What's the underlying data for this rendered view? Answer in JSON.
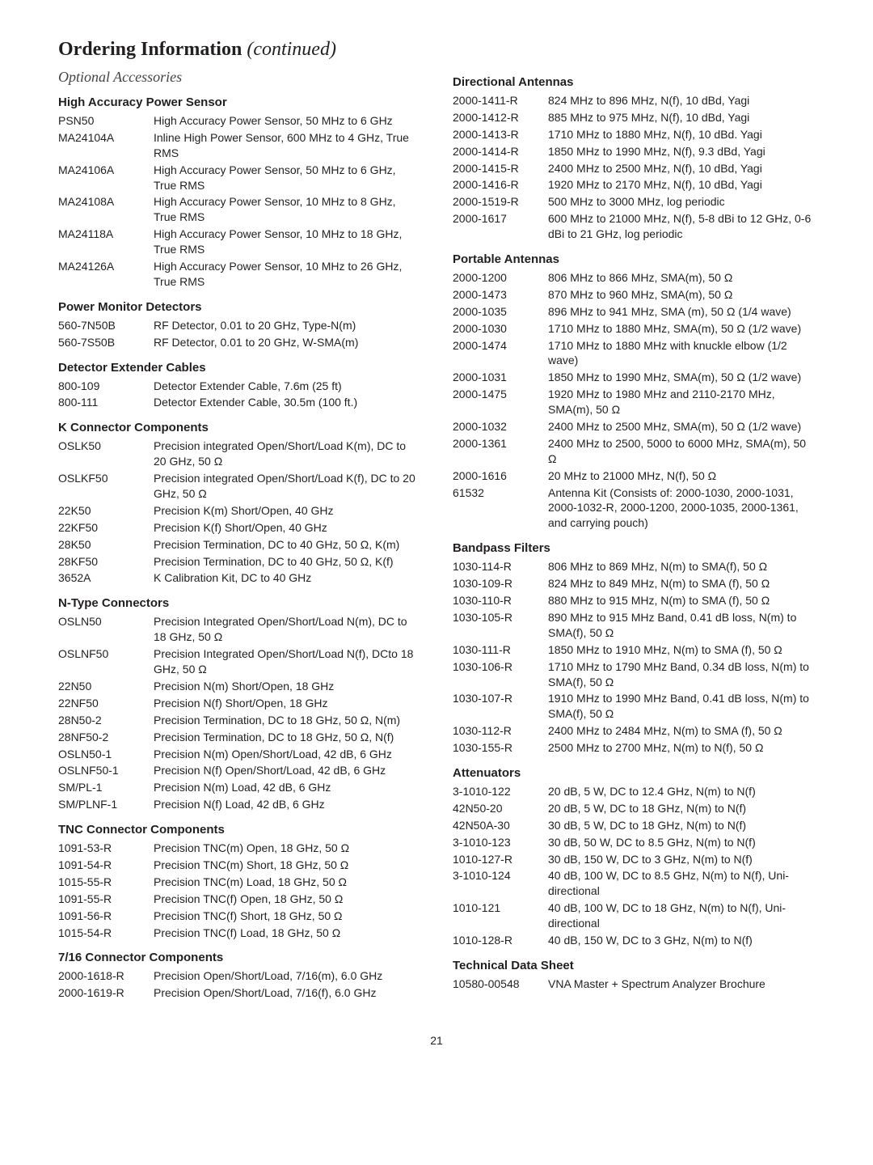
{
  "title_main": "Ordering Information",
  "title_continued": " (continued)",
  "subtitle": "Optional Accessories",
  "page_number": "21",
  "left_sections": [
    {
      "header": "High Accuracy Power Sensor",
      "items": [
        {
          "part": "PSN50",
          "desc": "High Accuracy Power Sensor, 50 MHz to 6 GHz"
        },
        {
          "part": "MA24104A",
          "desc": "Inline High Power Sensor, 600 MHz to 4 GHz, True RMS"
        },
        {
          "part": "MA24106A",
          "desc": "High Accuracy Power Sensor, 50 MHz to 6 GHz, True RMS"
        },
        {
          "part": "MA24108A",
          "desc": "High Accuracy Power Sensor, 10 MHz to 8 GHz, True RMS"
        },
        {
          "part": "MA24118A",
          "desc": "High Accuracy Power Sensor, 10 MHz to 18 GHz, True RMS"
        },
        {
          "part": "MA24126A",
          "desc": "High Accuracy Power Sensor, 10 MHz to 26 GHz, True RMS"
        }
      ]
    },
    {
      "header": "Power Monitor Detectors",
      "items": [
        {
          "part": "560-7N50B",
          "desc": "RF Detector, 0.01 to 20 GHz, Type-N(m)"
        },
        {
          "part": "560-7S50B",
          "desc": "RF Detector, 0.01 to 20 GHz, W-SMA(m)"
        }
      ]
    },
    {
      "header": "Detector Extender Cables",
      "items": [
        {
          "part": "800-109",
          "desc": "Detector Extender Cable, 7.6m (25 ft)"
        },
        {
          "part": "800-111",
          "desc": "Detector Extender Cable, 30.5m (100 ft.)"
        }
      ]
    },
    {
      "header": "K Connector Components",
      "items": [
        {
          "part": "OSLK50",
          "desc": "Precision integrated Open/Short/Load K(m), DC to 20 GHz, 50 Ω"
        },
        {
          "part": "OSLKF50",
          "desc": "Precision integrated Open/Short/Load K(f), DC to 20 GHz, 50 Ω"
        },
        {
          "part": "22K50",
          "desc": "Precision K(m) Short/Open, 40 GHz"
        },
        {
          "part": "22KF50",
          "desc": "Precision K(f) Short/Open, 40 GHz"
        },
        {
          "part": "28K50",
          "desc": "Precision Termination, DC to 40 GHz, 50 Ω, K(m)"
        },
        {
          "part": "28KF50",
          "desc": "Precision Termination, DC to 40 GHz, 50 Ω, K(f)"
        },
        {
          "part": "3652A",
          "desc": "K Calibration Kit, DC to 40 GHz"
        }
      ]
    },
    {
      "header": "N-Type Connectors",
      "items": [
        {
          "part": "OSLN50",
          "desc": "Precision Integrated Open/Short/Load N(m), DC to 18 GHz, 50 Ω"
        },
        {
          "part": "OSLNF50",
          "desc": "Precision Integrated Open/Short/Load N(f), DCto 18 GHz, 50 Ω"
        },
        {
          "part": "22N50",
          "desc": "Precision N(m) Short/Open, 18 GHz"
        },
        {
          "part": "22NF50",
          "desc": "Precision N(f) Short/Open, 18 GHz"
        },
        {
          "part": "28N50-2",
          "desc": "Precision Termination, DC to 18 GHz, 50 Ω, N(m)"
        },
        {
          "part": "28NF50-2",
          "desc": "Precision Termination, DC to 18 GHz, 50 Ω, N(f)"
        },
        {
          "part": "OSLN50-1",
          "desc": "Precision N(m) Open/Short/Load, 42 dB, 6 GHz"
        },
        {
          "part": "OSLNF50-1",
          "desc": "Precision N(f) Open/Short/Load, 42 dB, 6 GHz"
        },
        {
          "part": "SM/PL-1",
          "desc": "Precision N(m) Load, 42 dB, 6 GHz"
        },
        {
          "part": "SM/PLNF-1",
          "desc": "Precision N(f) Load, 42 dB, 6 GHz"
        }
      ]
    },
    {
      "header": "TNC Connector Components",
      "items": [
        {
          "part": "1091-53-R",
          "desc": "Precision TNC(m) Open, 18 GHz, 50 Ω"
        },
        {
          "part": "1091-54-R",
          "desc": "Precision TNC(m) Short, 18 GHz, 50 Ω"
        },
        {
          "part": "1015-55-R",
          "desc": "Precision TNC(m) Load, 18 GHz, 50 Ω"
        },
        {
          "part": "1091-55-R",
          "desc": "Precision TNC(f) Open, 18 GHz, 50 Ω"
        },
        {
          "part": "1091-56-R",
          "desc": "Precision TNC(f) Short, 18 GHz, 50 Ω"
        },
        {
          "part": "1015-54-R",
          "desc": "Precision TNC(f) Load, 18 GHz, 50 Ω"
        }
      ]
    },
    {
      "header": "7/16 Connector Components",
      "items": [
        {
          "part": "2000-1618-R",
          "desc": "Precision Open/Short/Load, 7/16(m), 6.0 GHz"
        },
        {
          "part": "2000-1619-R",
          "desc": "Precision Open/Short/Load, 7/16(f), 6.0 GHz"
        }
      ]
    }
  ],
  "right_sections": [
    {
      "header": "Directional Antennas",
      "items": [
        {
          "part": "2000-1411-R",
          "desc": "824 MHz to 896 MHz, N(f), 10 dBd, Yagi"
        },
        {
          "part": "2000-1412-R",
          "desc": "885 MHz to 975 MHz, N(f), 10 dBd, Yagi"
        },
        {
          "part": "2000-1413-R",
          "desc": "1710 MHz to 1880 MHz, N(f), 10 dBd. Yagi"
        },
        {
          "part": "2000-1414-R",
          "desc": "1850 MHz to 1990 MHz, N(f), 9.3 dBd, Yagi"
        },
        {
          "part": "2000-1415-R",
          "desc": "2400 MHz to 2500 MHz, N(f), 10 dBd, Yagi"
        },
        {
          "part": "2000-1416-R",
          "desc": "1920 MHz to 2170 MHz, N(f), 10 dBd, Yagi"
        },
        {
          "part": "2000-1519-R",
          "desc": "500 MHz to 3000 MHz, log periodic"
        },
        {
          "part": "2000-1617",
          "desc": "600 MHz to 21000 MHz, N(f), 5-8 dBi to 12 GHz, 0-6 dBi to 21 GHz, log periodic"
        }
      ]
    },
    {
      "header": "Portable Antennas",
      "items": [
        {
          "part": "2000-1200",
          "desc": "806 MHz to 866 MHz, SMA(m), 50 Ω"
        },
        {
          "part": "2000-1473",
          "desc": "870 MHz to 960 MHz, SMA(m), 50 Ω"
        },
        {
          "part": "2000-1035",
          "desc": "896 MHz to 941 MHz, SMA (m), 50 Ω (1/4 wave)"
        },
        {
          "part": "2000-1030",
          "desc": "1710 MHz to 1880 MHz, SMA(m), 50 Ω (1/2 wave)"
        },
        {
          "part": "2000-1474",
          "desc": "1710 MHz to 1880 MHz with knuckle elbow (1/2 wave)"
        },
        {
          "part": "2000-1031",
          "desc": "1850 MHz to 1990 MHz, SMA(m), 50 Ω (1/2 wave)"
        },
        {
          "part": "2000-1475",
          "desc": "1920 MHz to 1980 MHz and 2110-2170 MHz, SMA(m), 50 Ω"
        },
        {
          "part": "2000-1032",
          "desc": "2400 MHz to 2500 MHz, SMA(m), 50 Ω (1/2 wave)"
        },
        {
          "part": "2000-1361",
          "desc": "2400 MHz to 2500, 5000 to 6000 MHz, SMA(m), 50 Ω"
        },
        {
          "part": "2000-1616",
          "desc": "20 MHz to 21000 MHz, N(f), 50 Ω"
        },
        {
          "part": "61532",
          "desc": "Antenna Kit (Consists of: 2000-1030, 2000-1031, 2000-1032-R, 2000-1200, 2000-1035, 2000-1361, and carrying pouch)"
        }
      ]
    },
    {
      "header": "Bandpass Filters",
      "items": [
        {
          "part": "1030-114-R",
          "desc": "806 MHz to 869 MHz, N(m) to SMA(f), 50 Ω"
        },
        {
          "part": "1030-109-R",
          "desc": "824 MHz to 849 MHz, N(m) to SMA (f), 50 Ω"
        },
        {
          "part": "1030-110-R",
          "desc": "880 MHz to 915 MHz, N(m) to SMA (f), 50 Ω"
        },
        {
          "part": "1030-105-R",
          "desc": " 890 MHz to 915 MHz Band, 0.41 dB loss, N(m) to SMA(f), 50 Ω"
        },
        {
          "part": "1030-111-R",
          "desc": "1850 MHz to 1910 MHz, N(m) to SMA (f), 50 Ω"
        },
        {
          "part": "1030-106-R",
          "desc": "1710 MHz to 1790 MHz Band, 0.34 dB loss, N(m) to SMA(f), 50 Ω"
        },
        {
          "part": "1030-107-R",
          "desc": "1910 MHz to 1990 MHz Band, 0.41 dB loss, N(m) to SMA(f), 50 Ω"
        },
        {
          "part": "1030-112-R",
          "desc": "2400 MHz to 2484 MHz, N(m) to SMA (f), 50 Ω"
        },
        {
          "part": "1030-155-R",
          "desc": "2500 MHz to 2700 MHz, N(m) to N(f), 50 Ω"
        }
      ]
    },
    {
      "header": "Attenuators",
      "items": [
        {
          "part": "3-1010-122",
          "desc": "20 dB, 5 W, DC to 12.4 GHz, N(m) to N(f)"
        },
        {
          "part": "42N50-20",
          "desc": "20 dB, 5 W, DC to 18 GHz, N(m) to N(f)"
        },
        {
          "part": "42N50A-30",
          "desc": "30 dB, 5 W, DC to 18 GHz, N(m) to N(f)"
        },
        {
          "part": "3-1010-123",
          "desc": "30 dB, 50 W, DC to 8.5 GHz, N(m) to N(f)"
        },
        {
          "part": "1010-127-R",
          "desc": "30 dB, 150 W, DC to 3 GHz, N(m) to N(f)"
        },
        {
          "part": "3-1010-124",
          "desc": "40 dB, 100 W, DC to 8.5 GHz, N(m) to N(f), Uni-directional"
        },
        {
          "part": "1010-121",
          "desc": "40 dB, 100 W, DC to 18 GHz, N(m) to N(f), Uni-directional"
        },
        {
          "part": "1010-128-R",
          "desc": "40 dB, 150 W, DC to 3 GHz, N(m) to N(f)"
        }
      ]
    },
    {
      "header": "Technical Data Sheet",
      "items": [
        {
          "part": "10580-00548",
          "desc": "VNA Master + Spectrum Analyzer Brochure"
        }
      ]
    }
  ]
}
